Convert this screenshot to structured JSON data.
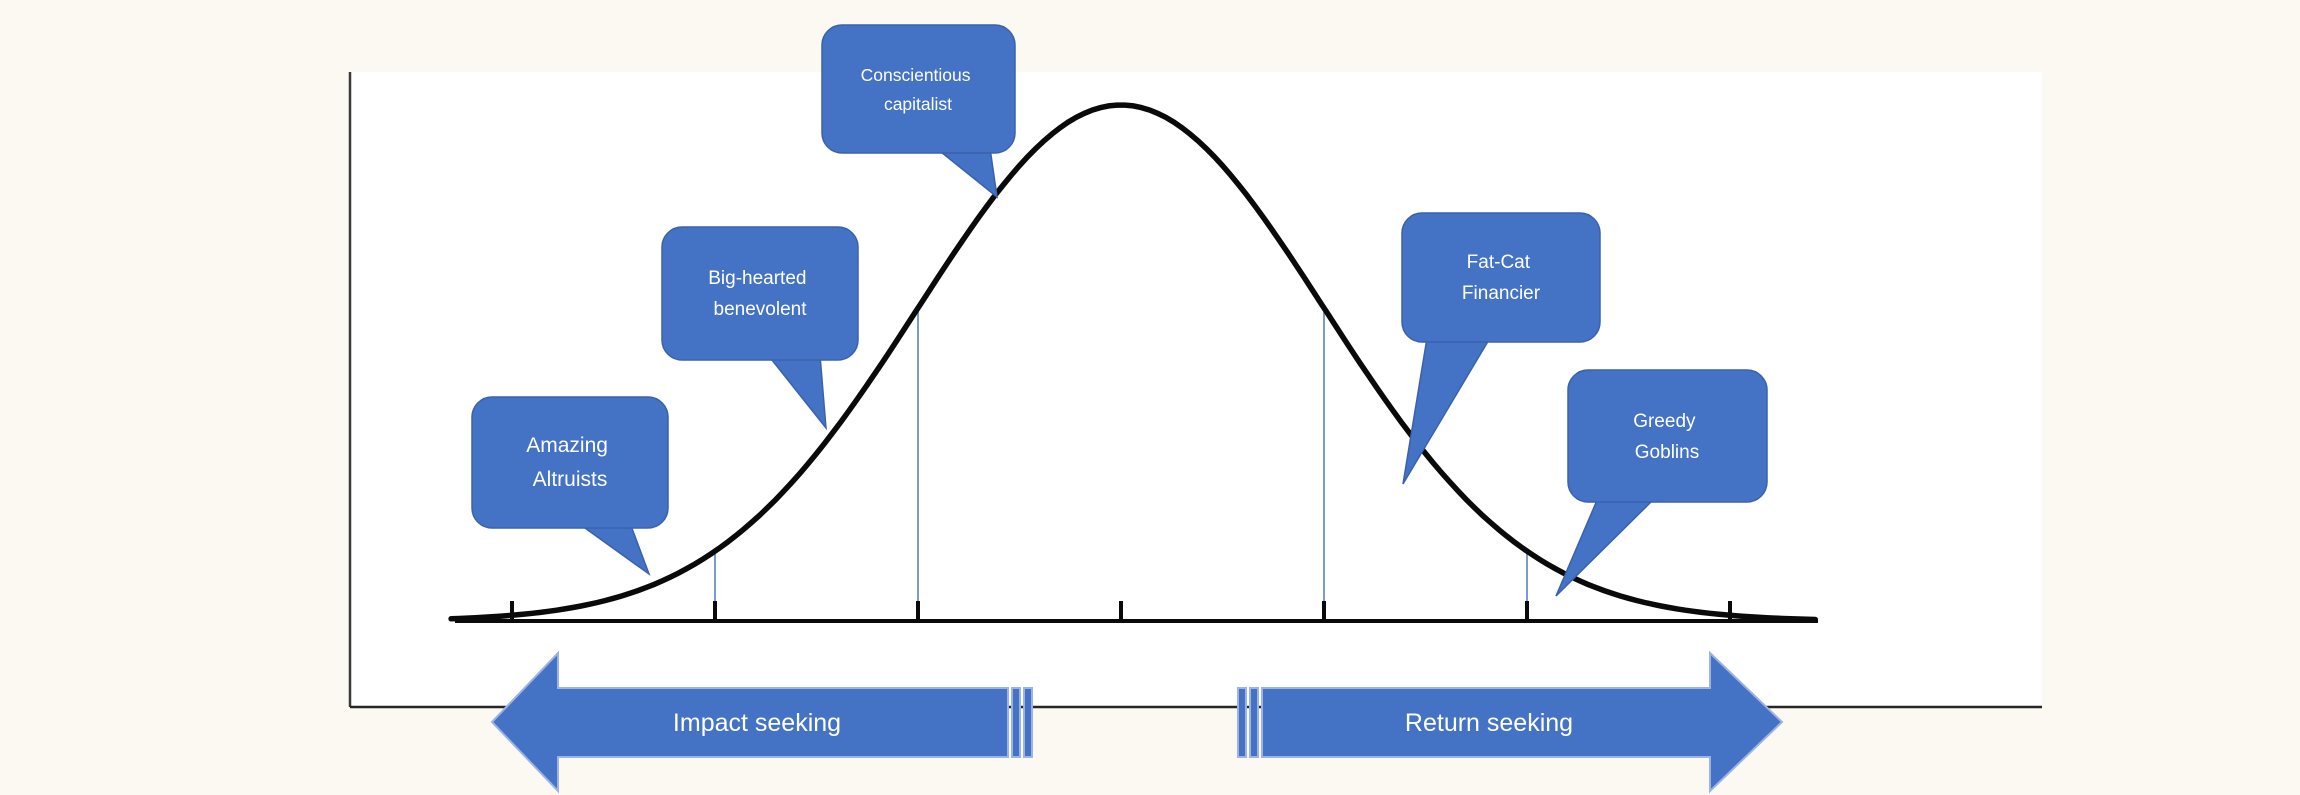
{
  "chart_data": {
    "type": "line",
    "title": "",
    "curve": {
      "distribution": "normal",
      "mean": 0,
      "sigma": 1,
      "x_range_sd": [
        -3.3,
        3.44
      ]
    },
    "x_ticks_sd": [
      -3,
      -2,
      -1,
      0,
      1,
      2,
      3
    ],
    "x_tick_labels": [],
    "reference_lines_sd": [
      -2,
      -1,
      1,
      2
    ],
    "grid": false,
    "legend": false,
    "annotations": [
      {
        "label": "Amazing Altruists",
        "points_to_sd": -2.3
      },
      {
        "label": "Big-hearted benevolent",
        "points_to_sd": -1.45
      },
      {
        "label": "Conscientious capitalist",
        "points_to_sd": -0.6
      },
      {
        "label": "Fat-Cat Financier",
        "points_to_sd": 1.4
      },
      {
        "label": "Greedy Goblins",
        "points_to_sd": 2.15
      }
    ]
  },
  "bubbles": [
    {
      "id": "conscientious-capitalist",
      "lines": [
        "Conscientious",
        "capitalist"
      ]
    },
    {
      "id": "big-hearted-benevolent",
      "lines": [
        "Big-hearted",
        "benevolent"
      ]
    },
    {
      "id": "amazing-altruists",
      "lines": [
        "Amazing",
        "Altruists"
      ]
    },
    {
      "id": "fat-cat-financier",
      "lines": [
        "Fat-Cat",
        "Financier"
      ]
    },
    {
      "id": "greedy-goblins",
      "lines": [
        "Greedy",
        "Goblins"
      ]
    }
  ],
  "arrows": [
    {
      "id": "impact-seeking",
      "label": "Impact seeking",
      "direction": "left"
    },
    {
      "id": "return-seeking",
      "label": "Return seeking",
      "direction": "right"
    }
  ],
  "colors": {
    "accent_blue": "#4472C4",
    "accent_blue_border": "#3A62AC",
    "reference_line_blue": "#6E8FCB",
    "curve_black": "#0a0a0a",
    "axis_gray": "#3a3a3a",
    "canvas_white": "#FFFFFF",
    "page_cream": "#FBF9F1"
  }
}
